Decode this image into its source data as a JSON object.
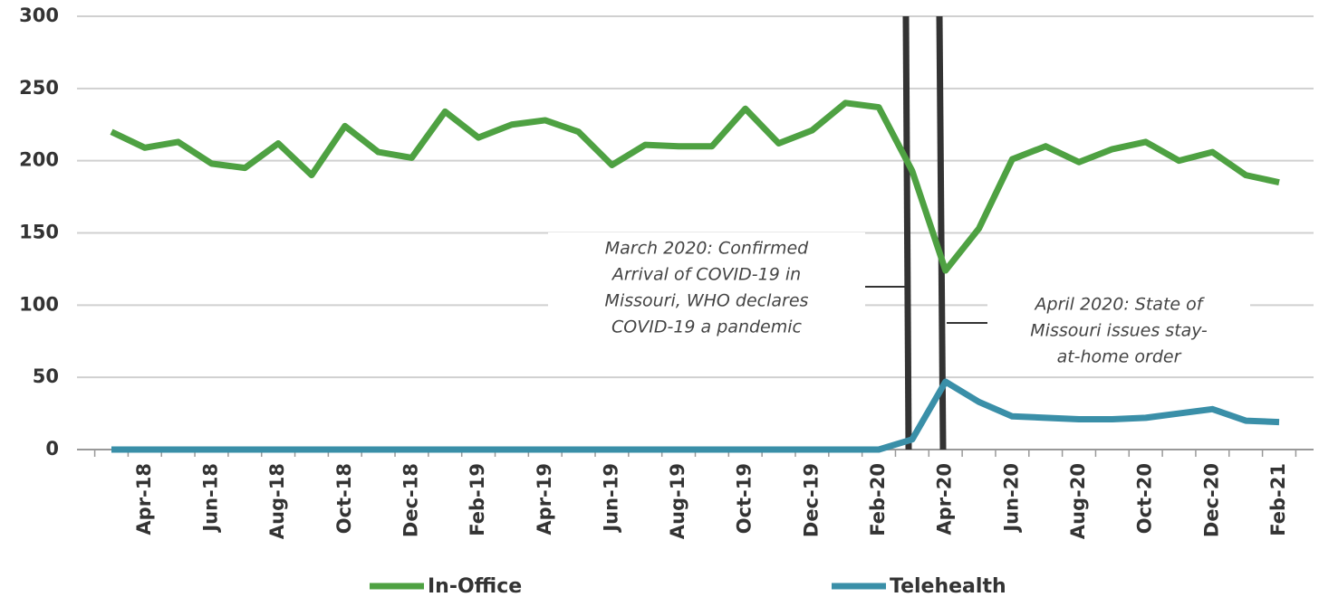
{
  "chart_data": {
    "type": "line",
    "categories": [
      null,
      "Apr-18",
      null,
      "Jun-18",
      null,
      "Aug-18",
      null,
      "Oct-18",
      null,
      "Dec-18",
      null,
      "Feb-19",
      null,
      "Apr-19",
      null,
      "Jun-19",
      null,
      "Aug-19",
      null,
      "Oct-19",
      null,
      "Dec-19",
      null,
      "Feb-20",
      null,
      "Apr-20",
      null,
      "Jun-20",
      null,
      "Aug-20",
      null,
      "Oct-20",
      null,
      "Dec-20",
      null,
      "Feb-21"
    ],
    "series": [
      {
        "name": "In-Office",
        "color": "#4ea142",
        "values": [
          220,
          209,
          213,
          198,
          195,
          212,
          190,
          224,
          206,
          202,
          234,
          216,
          225,
          228,
          220,
          197,
          211,
          210,
          210,
          236,
          212,
          221,
          240,
          237,
          193,
          124,
          153,
          201,
          210,
          199,
          208,
          213,
          200,
          206,
          190,
          185
        ]
      },
      {
        "name": "Telehealth",
        "color": "#3a8fa8",
        "values": [
          0,
          0,
          0,
          0,
          0,
          0,
          0,
          0,
          0,
          0,
          0,
          0,
          0,
          0,
          0,
          0,
          0,
          0,
          0,
          0,
          0,
          0,
          0,
          0,
          7,
          47,
          33,
          23,
          22,
          21,
          21,
          22,
          25,
          28,
          20,
          19
        ]
      }
    ],
    "ylim": [
      0,
      300
    ],
    "yticks": [
      0,
      50,
      100,
      150,
      200,
      250,
      300
    ],
    "grid": true,
    "annotations": [
      {
        "lines": [
          "March 2020: Confirmed",
          "Arrival of COVID-19 in",
          "Missouri, WHO declares",
          "COVID-19 a pandemic"
        ]
      },
      {
        "lines": [
          "April 2020: State of",
          "Missouri issues stay-",
          "at-home order"
        ]
      }
    ],
    "legend": "bottom"
  }
}
